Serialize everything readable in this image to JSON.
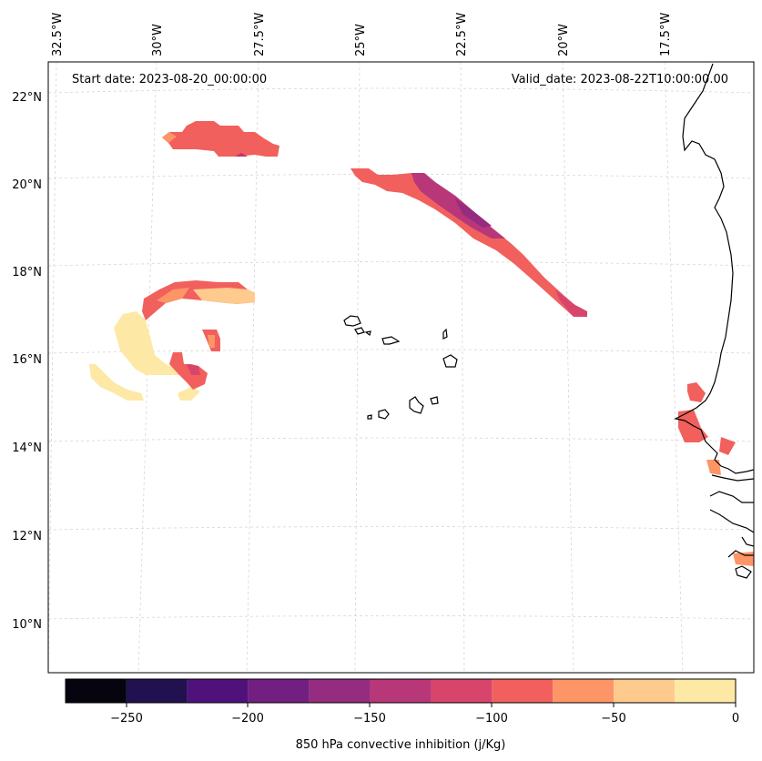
{
  "map": {
    "start_label": "Start date: 2023-08-20_00:00:00",
    "valid_label": "Valid_date: 2023-08-22T10:00:00.00",
    "lon_labels": [
      "32.5°W",
      "30°W",
      "27.5°W",
      "25°W",
      "22.5°W",
      "20°W",
      "17.5°W"
    ],
    "lat_labels": [
      "22°N",
      "20°N",
      "18°N",
      "16°N",
      "14°N",
      "12°N",
      "10°N"
    ],
    "variable": "850 hPa convective inhibition"
  },
  "colorbar": {
    "label": "850 hPa convective inhibition (j/Kg)",
    "tick_labels": [
      "−250",
      "−200",
      "−150",
      "−100",
      "−50",
      "0"
    ],
    "levels": [
      -275,
      -250,
      -225,
      -200,
      -175,
      -150,
      -125,
      -100,
      -75,
      -50,
      -25,
      0
    ],
    "colors": [
      "#05040f",
      "#221150",
      "#4f127b",
      "#721f81",
      "#952c80",
      "#b83779",
      "#d8456c",
      "#f1605d",
      "#fd9567",
      "#feca8d",
      "#fde8a5"
    ]
  }
}
